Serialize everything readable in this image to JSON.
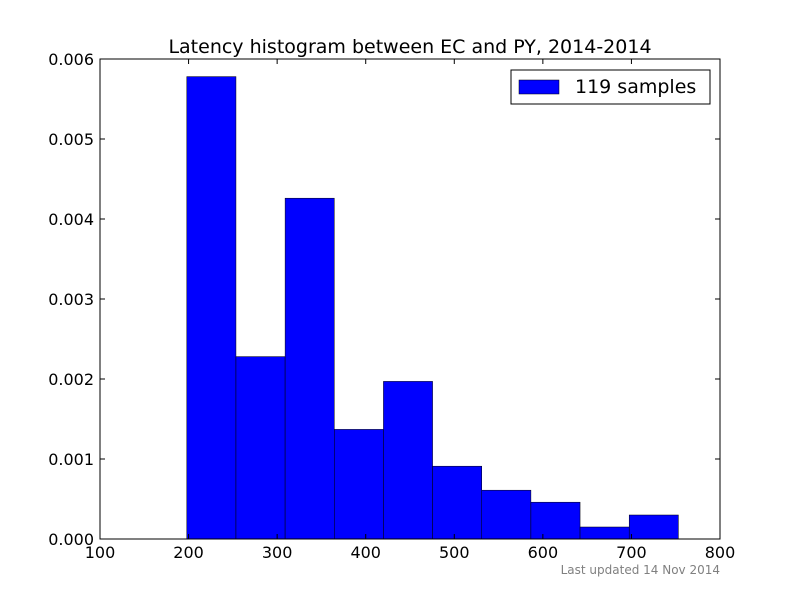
{
  "chart_data": {
    "type": "bar",
    "title": "Latency histogram between EC and PY, 2014-2014",
    "xlabel": "",
    "ylabel": "",
    "xlim": [
      100,
      800
    ],
    "ylim": [
      0,
      0.006
    ],
    "xticks": [
      100,
      200,
      300,
      400,
      500,
      600,
      700,
      800
    ],
    "xtick_labels": [
      "100",
      "200",
      "300",
      "400",
      "500",
      "600",
      "700",
      "800"
    ],
    "yticks": [
      0,
      0.001,
      0.002,
      0.003,
      0.004,
      0.005,
      0.006
    ],
    "ytick_labels": [
      "0.000",
      "0.001",
      "0.002",
      "0.003",
      "0.004",
      "0.005",
      "0.006"
    ],
    "bin_edges": [
      198,
      253.5,
      309,
      364.5,
      420,
      475.5,
      531,
      586.5,
      642,
      697.5,
      753
    ],
    "values": [
      0.00578,
      0.00228,
      0.00426,
      0.00137,
      0.00197,
      0.00091,
      0.00061,
      0.00046,
      0.00015,
      0.0003
    ],
    "bar_color": "#0000ff",
    "grid": false,
    "legend": {
      "position": "top-right",
      "entries": [
        {
          "label": "119 samples",
          "color": "#0000ff"
        }
      ]
    },
    "footnote": "Last updated 14 Nov 2014"
  }
}
